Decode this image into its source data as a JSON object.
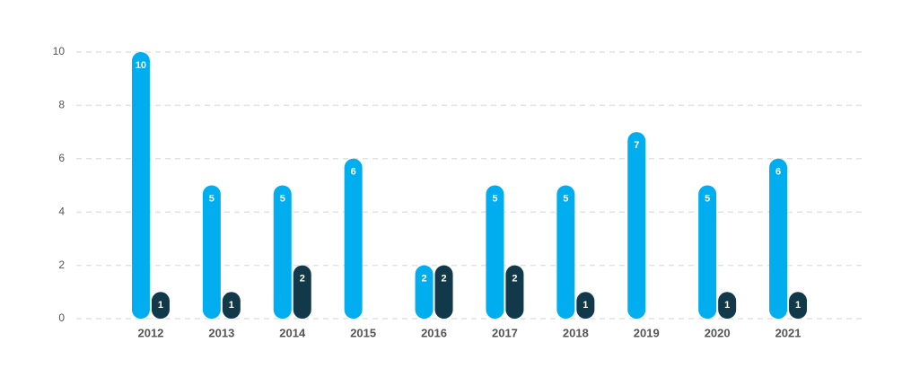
{
  "chart_data": {
    "type": "bar",
    "categories": [
      "2012",
      "2013",
      "2014",
      "2015",
      "2016",
      "2017",
      "2018",
      "2019",
      "2020",
      "2021"
    ],
    "series": [
      {
        "color": "#00aeef",
        "values": [
          10,
          5,
          5,
          6,
          2,
          5,
          5,
          7,
          5,
          6
        ]
      },
      {
        "color": "#12394a",
        "values": [
          1,
          1,
          2,
          null,
          2,
          2,
          1,
          null,
          1,
          1
        ]
      }
    ],
    "ylim": [
      0,
      10
    ],
    "yticks": [
      0,
      2,
      4,
      6,
      8,
      10
    ],
    "grid": true
  }
}
